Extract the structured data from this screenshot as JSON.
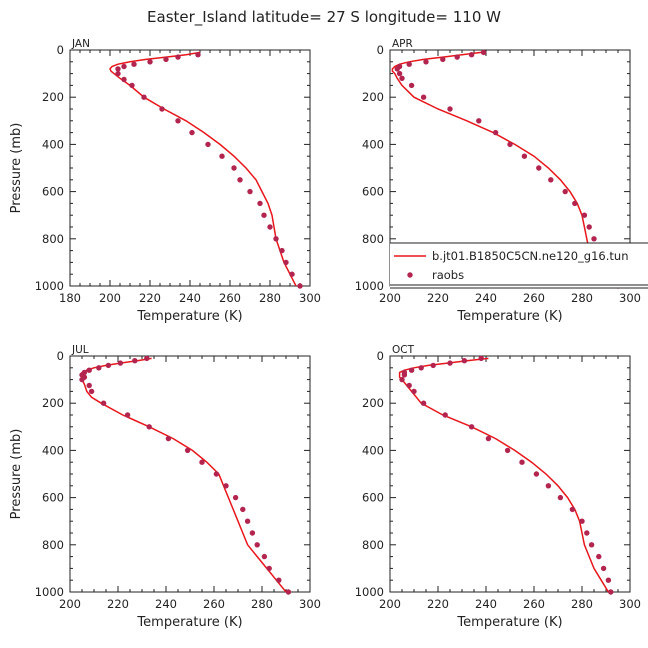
{
  "title": "Easter_Island  latitude= 27 S longitude= 110 W",
  "colors": {
    "model": "#e8161a",
    "obs": "#b3244f",
    "axis": "#222222"
  },
  "legend": {
    "model_label": "b.jt01.B1850C5CN.ne120_g16.tun",
    "obs_label": "raobs"
  },
  "chart_data": [
    {
      "type": "line",
      "panel": "JAN",
      "xlabel": "Temperature (K)",
      "ylabel": "Pressure (mb)",
      "xlim": [
        180,
        300
      ],
      "ylim": [
        1000,
        0
      ],
      "xticks": [
        180,
        200,
        220,
        240,
        260,
        280,
        300
      ],
      "yticks": [
        0,
        200,
        400,
        600,
        800,
        1000
      ],
      "series": [
        {
          "kind": "line",
          "points": [
            [
              245,
              10
            ],
            [
              238,
              20
            ],
            [
              228,
              30
            ],
            [
              218,
              40
            ],
            [
              210,
              50
            ],
            [
              204,
              60
            ],
            [
              201,
              70
            ],
            [
              200,
              80
            ],
            [
              200.5,
              90
            ],
            [
              202,
              100
            ],
            [
              205,
              120
            ],
            [
              210,
              150
            ],
            [
              217,
              200
            ],
            [
              227,
              250
            ],
            [
              238,
              300
            ],
            [
              247,
              350
            ],
            [
              255,
              400
            ],
            [
              262,
              450
            ],
            [
              268,
              500
            ],
            [
              273,
              550
            ],
            [
              276,
              600
            ],
            [
              279,
              650
            ],
            [
              281,
              700
            ],
            [
              282,
              750
            ],
            [
              283,
              800
            ],
            [
              285,
              850
            ],
            [
              287,
              900
            ],
            [
              290,
              950
            ],
            [
              293,
              1000
            ]
          ]
        },
        {
          "kind": "scatter",
          "points": [
            [
              244,
              20
            ],
            [
              234,
              30
            ],
            [
              228,
              40
            ],
            [
              220,
              50
            ],
            [
              212,
              60
            ],
            [
              207,
              70
            ],
            [
              204,
              80
            ],
            [
              204,
              100
            ],
            [
              207,
              125
            ],
            [
              211,
              150
            ],
            [
              217,
              200
            ],
            [
              226,
              250
            ],
            [
              234,
              300
            ],
            [
              241,
              350
            ],
            [
              249,
              400
            ],
            [
              256,
              450
            ],
            [
              262,
              500
            ],
            [
              265,
              550
            ],
            [
              270,
              600
            ],
            [
              275,
              650
            ],
            [
              277,
              700
            ],
            [
              280,
              750
            ],
            [
              283,
              800
            ],
            [
              286,
              850
            ],
            [
              288,
              900
            ],
            [
              291,
              950
            ],
            [
              295,
              1000
            ]
          ]
        }
      ]
    },
    {
      "type": "line",
      "panel": "APR",
      "xlabel": "Temperature (K)",
      "ylabel": "",
      "xlim": [
        200,
        300
      ],
      "ylim": [
        1000,
        0
      ],
      "xticks": [
        200,
        220,
        240,
        260,
        280,
        300
      ],
      "yticks": [
        0,
        200,
        400,
        600,
        800,
        1000
      ],
      "series": [
        {
          "kind": "line",
          "points": [
            [
              238,
              10
            ],
            [
              230,
              20
            ],
            [
              222,
              30
            ],
            [
              214,
              40
            ],
            [
              208,
              50
            ],
            [
              204,
              60
            ],
            [
              202,
              70
            ],
            [
              201,
              80
            ],
            [
              201,
              90
            ],
            [
              202,
              100
            ],
            [
              203,
              120
            ],
            [
              205,
              150
            ],
            [
              210,
              200
            ],
            [
              220,
              250
            ],
            [
              232,
              300
            ],
            [
              243,
              350
            ],
            [
              252,
              400
            ],
            [
              260,
              450
            ],
            [
              266,
              500
            ],
            [
              271,
              550
            ],
            [
              275,
              600
            ],
            [
              278,
              650
            ],
            [
              280,
              700
            ],
            [
              281,
              750
            ],
            [
              282,
              800
            ],
            [
              283,
              850
            ],
            [
              284,
              900
            ],
            [
              287,
              950
            ],
            [
              292,
              1000
            ]
          ]
        },
        {
          "kind": "scatter",
          "points": [
            [
              239,
              10
            ],
            [
              234,
              20
            ],
            [
              228,
              30
            ],
            [
              222,
              40
            ],
            [
              215,
              50
            ],
            [
              208,
              60
            ],
            [
              204,
              70
            ],
            [
              203,
              80
            ],
            [
              204,
              100
            ],
            [
              205,
              120
            ],
            [
              209,
              150
            ],
            [
              214,
              200
            ],
            [
              225,
              250
            ],
            [
              237,
              300
            ],
            [
              244,
              350
            ],
            [
              250,
              400
            ],
            [
              256,
              450
            ],
            [
              262,
              500
            ],
            [
              267,
              550
            ],
            [
              273,
              600
            ],
            [
              277,
              650
            ],
            [
              281,
              700
            ],
            [
              283,
              750
            ],
            [
              285,
              800
            ],
            [
              287,
              850
            ],
            [
              290,
              900
            ],
            [
              292,
              950
            ],
            [
              295,
              1000
            ]
          ]
        }
      ]
    },
    {
      "type": "line",
      "panel": "JUL",
      "xlabel": "Temperature (K)",
      "ylabel": "Pressure (mb)",
      "xlim": [
        200,
        300
      ],
      "ylim": [
        1000,
        0
      ],
      "xticks": [
        200,
        220,
        240,
        260,
        280,
        300
      ],
      "yticks": [
        0,
        200,
        400,
        600,
        800,
        1000
      ],
      "series": [
        {
          "kind": "line",
          "points": [
            [
              234,
              10
            ],
            [
              228,
              20
            ],
            [
              221,
              30
            ],
            [
              215,
              40
            ],
            [
              210,
              50
            ],
            [
              207,
              60
            ],
            [
              205,
              70
            ],
            [
              205,
              80
            ],
            [
              205,
              90
            ],
            [
              205,
              100
            ],
            [
              206,
              120
            ],
            [
              207,
              150
            ],
            [
              209,
              175
            ],
            [
              213,
              200
            ],
            [
              222,
              250
            ],
            [
              233,
              300
            ],
            [
              243,
              350
            ],
            [
              251,
              400
            ],
            [
              257,
              450
            ],
            [
              262,
              500
            ],
            [
              264,
              550
            ],
            [
              266,
              600
            ],
            [
              268,
              650
            ],
            [
              270,
              700
            ],
            [
              272,
              750
            ],
            [
              274,
              800
            ],
            [
              278,
              850
            ],
            [
              282,
              900
            ],
            [
              286,
              950
            ],
            [
              290,
              1000
            ]
          ]
        },
        {
          "kind": "scatter",
          "points": [
            [
              232,
              10
            ],
            [
              227,
              20
            ],
            [
              221,
              30
            ],
            [
              216,
              40
            ],
            [
              212,
              50
            ],
            [
              208,
              60
            ],
            [
              206,
              70
            ],
            [
              205,
              80
            ],
            [
              206,
              90
            ],
            [
              205,
              100
            ],
            [
              208,
              125
            ],
            [
              209,
              150
            ],
            [
              214,
              200
            ],
            [
              224,
              250
            ],
            [
              233,
              300
            ],
            [
              241,
              350
            ],
            [
              249,
              400
            ],
            [
              255,
              450
            ],
            [
              261,
              500
            ],
            [
              265,
              550
            ],
            [
              269,
              600
            ],
            [
              272,
              650
            ],
            [
              274,
              700
            ],
            [
              276,
              750
            ],
            [
              278,
              800
            ],
            [
              281,
              850
            ],
            [
              283,
              900
            ],
            [
              287,
              950
            ],
            [
              291,
              1000
            ]
          ]
        }
      ]
    },
    {
      "type": "line",
      "panel": "OCT",
      "xlabel": "Temperature (K)",
      "ylabel": "",
      "xlim": [
        200,
        300
      ],
      "ylim": [
        1000,
        0
      ],
      "xticks": [
        200,
        220,
        240,
        260,
        280,
        300
      ],
      "yticks": [
        0,
        200,
        400,
        600,
        800,
        1000
      ],
      "series": [
        {
          "kind": "line",
          "points": [
            [
              241,
              10
            ],
            [
              232,
              20
            ],
            [
              224,
              30
            ],
            [
              216,
              40
            ],
            [
              210,
              50
            ],
            [
              206,
              60
            ],
            [
              204,
              70
            ],
            [
              204,
              80
            ],
            [
              204,
              90
            ],
            [
              205,
              100
            ],
            [
              207,
              125
            ],
            [
              209,
              150
            ],
            [
              213,
              200
            ],
            [
              222,
              250
            ],
            [
              234,
              300
            ],
            [
              244,
              350
            ],
            [
              252,
              400
            ],
            [
              259,
              450
            ],
            [
              265,
              500
            ],
            [
              270,
              550
            ],
            [
              274,
              600
            ],
            [
              277,
              650
            ],
            [
              279,
              700
            ],
            [
              280,
              750
            ],
            [
              281,
              800
            ],
            [
              283,
              850
            ],
            [
              285,
              900
            ],
            [
              288,
              950
            ],
            [
              291,
              1000
            ]
          ]
        },
        {
          "kind": "scatter",
          "points": [
            [
              238,
              10
            ],
            [
              231,
              20
            ],
            [
              225,
              30
            ],
            [
              218,
              40
            ],
            [
              213,
              50
            ],
            [
              209,
              60
            ],
            [
              206,
              70
            ],
            [
              206,
              80
            ],
            [
              205,
              100
            ],
            [
              208,
              125
            ],
            [
              210,
              150
            ],
            [
              214,
              200
            ],
            [
              223,
              250
            ],
            [
              234,
              300
            ],
            [
              241,
              350
            ],
            [
              249,
              400
            ],
            [
              255,
              450
            ],
            [
              261,
              500
            ],
            [
              266,
              550
            ],
            [
              271,
              600
            ],
            [
              276,
              650
            ],
            [
              280,
              700
            ],
            [
              282,
              750
            ],
            [
              284,
              800
            ],
            [
              287,
              850
            ],
            [
              289,
              900
            ],
            [
              291,
              950
            ],
            [
              292,
              1000
            ]
          ]
        }
      ]
    }
  ]
}
